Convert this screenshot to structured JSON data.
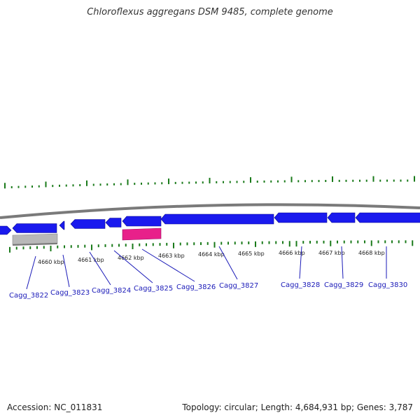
{
  "title": "Chloroflexus aggregans DSM 9485, complete genome",
  "footer": {
    "accession": "Accession: NC_011831",
    "stats": "Topology: circular; Length: 4,684,931 bp; Genes: 3,787"
  },
  "colors": {
    "backbone": "#7a7a7a",
    "forward_gene": "#1a1aee",
    "reverse_gene": "#1a1aee",
    "rna_gene": "#e8208a",
    "pseudogene": "#b8b8b8",
    "ticks": "#1a7a1a",
    "label_line": "#1a1ab8",
    "label_text": "#1a1ab8"
  },
  "scale_labels": [
    "4660 kbp",
    "4661 kbp",
    "4662 kbp",
    "4663 kbp",
    "4664 kbp",
    "4665 kbp",
    "4666 kbp",
    "4667 kbp",
    "4668 kbp"
  ],
  "gene_labels": [
    "Cagg_3822",
    "Cagg_3823",
    "Cagg_3824",
    "Cagg_3825",
    "Cagg_3826",
    "Cagg_3827",
    "Cagg_3828",
    "Cagg_3829",
    "Cagg_3830"
  ]
}
